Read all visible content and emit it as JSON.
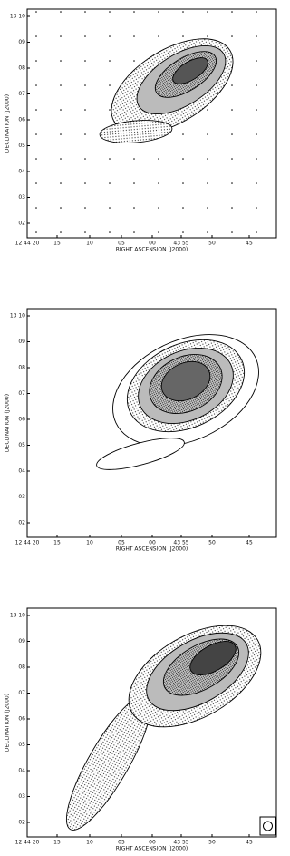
{
  "panels": [
    {
      "y_label": "DECLINATION (J2000)",
      "x_label": "RIGHT ASCENSION (J2000)",
      "y_ticks": [
        "13 10",
        "09",
        "08",
        "07",
        "06",
        "05",
        "04",
        "03",
        "02"
      ],
      "x_ticks": [
        "12 44 20",
        "15",
        "10",
        "05",
        "00",
        "43 55",
        "50",
        "45"
      ]
    },
    {
      "y_label": "DECLINATION (J2000)",
      "x_label": "RIGHT ASCENSION (J2000)",
      "y_ticks": [
        "13 10",
        "09",
        "08",
        "07",
        "06",
        "05",
        "04",
        "03",
        "02"
      ],
      "x_ticks": [
        "12 44 20",
        "15",
        "10",
        "05",
        "00",
        "43 55",
        "50",
        "45"
      ]
    },
    {
      "y_label": "DECLINATION (J2000)",
      "x_label": "RIGHT ASCENSION (J2000)",
      "y_ticks": [
        "13 10",
        "09",
        "08",
        "07",
        "06",
        "05",
        "04",
        "03",
        "02"
      ],
      "x_ticks": [
        "12 44 20",
        "15",
        "10",
        "05",
        "00",
        "43 55",
        "50",
        "45"
      ]
    }
  ]
}
